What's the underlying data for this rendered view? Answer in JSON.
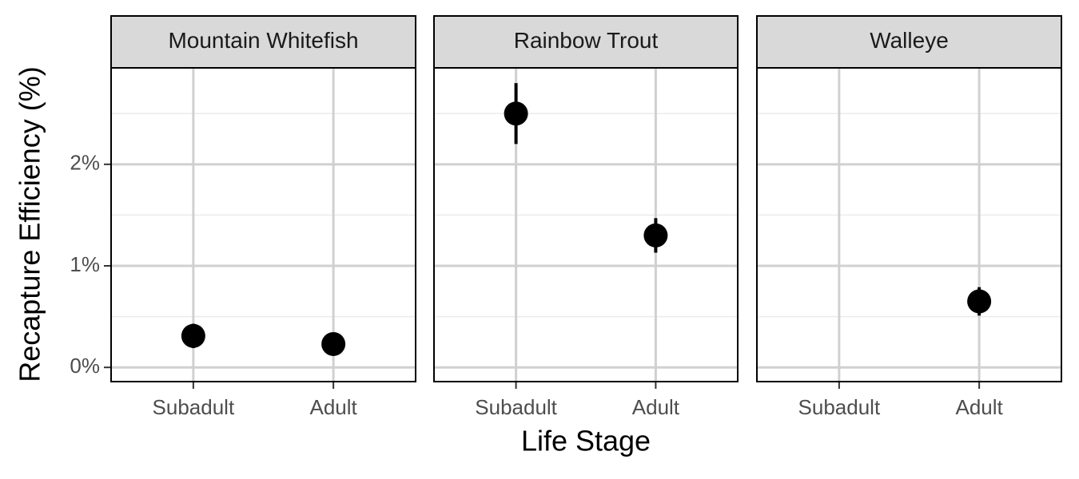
{
  "x_label": "Life Stage",
  "y_label": "Recapture Efficiency (%)",
  "chart_data": [
    {
      "type": "point",
      "title": "Mountain Whitefish",
      "categories": [
        "Subadult",
        "Adult"
      ],
      "values": [
        0.31,
        0.23
      ],
      "errors": [
        0.12,
        0.08
      ],
      "color": "#000000",
      "ylim": [
        -0.14,
        2.95
      ],
      "yticks": [
        {
          "value": 0,
          "label": "0%"
        },
        {
          "value": 1,
          "label": "1%"
        },
        {
          "value": 2,
          "label": "2%"
        }
      ],
      "yminorticks": [
        0.5,
        1.5,
        2.5
      ],
      "grid": true
    },
    {
      "type": "point",
      "title": "Rainbow Trout",
      "categories": [
        "Subadult",
        "Adult"
      ],
      "values": [
        2.5,
        1.3
      ],
      "errors": [
        0.3,
        0.17
      ],
      "color": "#000000",
      "ylim": [
        -0.14,
        2.95
      ],
      "yticks": [
        {
          "value": 0,
          "label": "0%"
        },
        {
          "value": 1,
          "label": "1%"
        },
        {
          "value": 2,
          "label": "2%"
        }
      ],
      "yminorticks": [
        0.5,
        1.5,
        2.5
      ],
      "grid": true
    },
    {
      "type": "point",
      "title": "Walleye",
      "categories": [
        "Subadult",
        "Adult"
      ],
      "values": [
        null,
        0.65
      ],
      "errors": [
        null,
        0.14
      ],
      "color": "#000000",
      "ylim": [
        -0.14,
        2.95
      ],
      "yticks": [
        {
          "value": 0,
          "label": "0%"
        },
        {
          "value": 1,
          "label": "1%"
        },
        {
          "value": 2,
          "label": "2%"
        }
      ],
      "yminorticks": [
        0.5,
        1.5,
        2.5
      ],
      "grid": true
    }
  ]
}
